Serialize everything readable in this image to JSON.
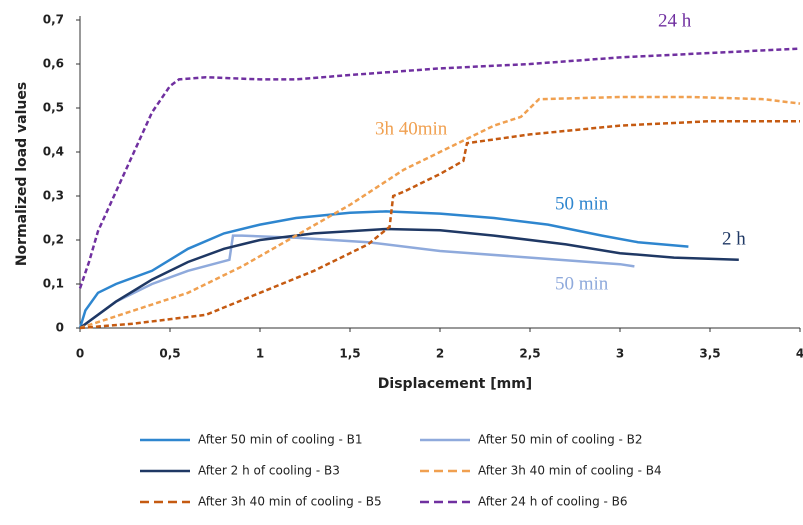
{
  "chart_data": {
    "type": "line",
    "x_label": "Displacement [mm]",
    "y_label": "Normalized load values",
    "xlim": [
      0,
      4
    ],
    "ylim": [
      0,
      0.7
    ],
    "xticks": [
      0,
      {
        "value": 0.5,
        "label": "0,5"
      },
      1,
      {
        "value": 1.5,
        "label": "1,5"
      },
      2,
      {
        "value": 2.5,
        "label": "2,5"
      },
      3,
      {
        "value": 3.5,
        "label": "3,5"
      },
      4
    ],
    "yticks": [
      0,
      {
        "value": 0.1,
        "label": "0,1"
      },
      {
        "value": 0.2,
        "label": "0,2"
      },
      {
        "value": 0.3,
        "label": "0,3"
      },
      {
        "value": 0.4,
        "label": "0,4"
      },
      {
        "value": 0.5,
        "label": "0,5"
      },
      {
        "value": 0.6,
        "label": "0,6"
      },
      {
        "value": 0.7,
        "label": "0,7"
      }
    ],
    "grid": false,
    "legend": "bottom",
    "series": [
      {
        "name": "After 50 min of cooling - B1",
        "color": "#2e86cf",
        "dashed": false,
        "annotation": "50 min",
        "x": [
          0,
          0.03,
          0.1,
          0.2,
          0.4,
          0.6,
          0.8,
          1,
          1.2,
          1.5,
          1.7,
          2,
          2.3,
          2.6,
          2.9,
          3.1,
          3.38
        ],
        "values": [
          0,
          0.04,
          0.08,
          0.1,
          0.13,
          0.18,
          0.215,
          0.235,
          0.25,
          0.262,
          0.265,
          0.26,
          0.25,
          0.235,
          0.21,
          0.195,
          0.185
        ]
      },
      {
        "name": "After 50 min of cooling - B2",
        "color": "#8faadc",
        "dashed": false,
        "annotation": "50 min",
        "x": [
          0,
          0.2,
          0.4,
          0.6,
          0.83,
          0.85,
          0.9,
          1.2,
          1.6,
          2,
          2.5,
          3,
          3.08
        ],
        "values": [
          0,
          0.06,
          0.1,
          0.13,
          0.155,
          0.21,
          0.21,
          0.205,
          0.195,
          0.175,
          0.16,
          0.145,
          0.14
        ]
      },
      {
        "name": "After 2 h of cooling - B3",
        "color": "#1f3864",
        "dashed": false,
        "annotation": "2 h",
        "x": [
          0,
          0.2,
          0.4,
          0.6,
          0.8,
          0.9,
          1,
          1.3,
          1.7,
          2,
          2.3,
          2.7,
          3,
          3.3,
          3.66
        ],
        "values": [
          0,
          0.06,
          0.11,
          0.15,
          0.18,
          0.19,
          0.2,
          0.215,
          0.225,
          0.222,
          0.21,
          0.19,
          0.17,
          0.16,
          0.155
        ]
      },
      {
        "name": "After 3h 40 min of cooling - B4",
        "color": "#f0a050",
        "dashed": true,
        "annotation": "3h 40min",
        "x": [
          0,
          0.3,
          0.6,
          0.9,
          1.2,
          1.5,
          1.8,
          2.1,
          2.3,
          2.45,
          2.55,
          3,
          3.4,
          3.8,
          4
        ],
        "values": [
          0,
          0.04,
          0.08,
          0.14,
          0.21,
          0.28,
          0.36,
          0.42,
          0.46,
          0.48,
          0.52,
          0.525,
          0.525,
          0.52,
          0.51
        ]
      },
      {
        "name": "After 3h 40 min of cooling - B5",
        "color": "#c55a11",
        "dashed": true,
        "x": [
          0,
          0.3,
          0.7,
          1,
          1.3,
          1.6,
          1.72,
          1.74,
          1.8,
          2,
          2.13,
          2.15,
          2.5,
          3,
          3.5,
          4
        ],
        "values": [
          0,
          0.01,
          0.03,
          0.08,
          0.13,
          0.19,
          0.23,
          0.3,
          0.31,
          0.35,
          0.38,
          0.42,
          0.44,
          0.46,
          0.47,
          0.47
        ]
      },
      {
        "name": "After 24 h of cooling - B6",
        "color": "#7030a0",
        "dashed": true,
        "annotation": "24 h",
        "x": [
          0,
          0.05,
          0.1,
          0.2,
          0.3,
          0.4,
          0.5,
          0.55,
          0.7,
          1,
          1.2,
          1.5,
          2,
          2.5,
          3,
          3.5,
          4
        ],
        "values": [
          0.09,
          0.15,
          0.22,
          0.31,
          0.4,
          0.49,
          0.55,
          0.565,
          0.57,
          0.565,
          0.565,
          0.575,
          0.59,
          0.6,
          0.615,
          0.625,
          0.635
        ]
      }
    ]
  }
}
